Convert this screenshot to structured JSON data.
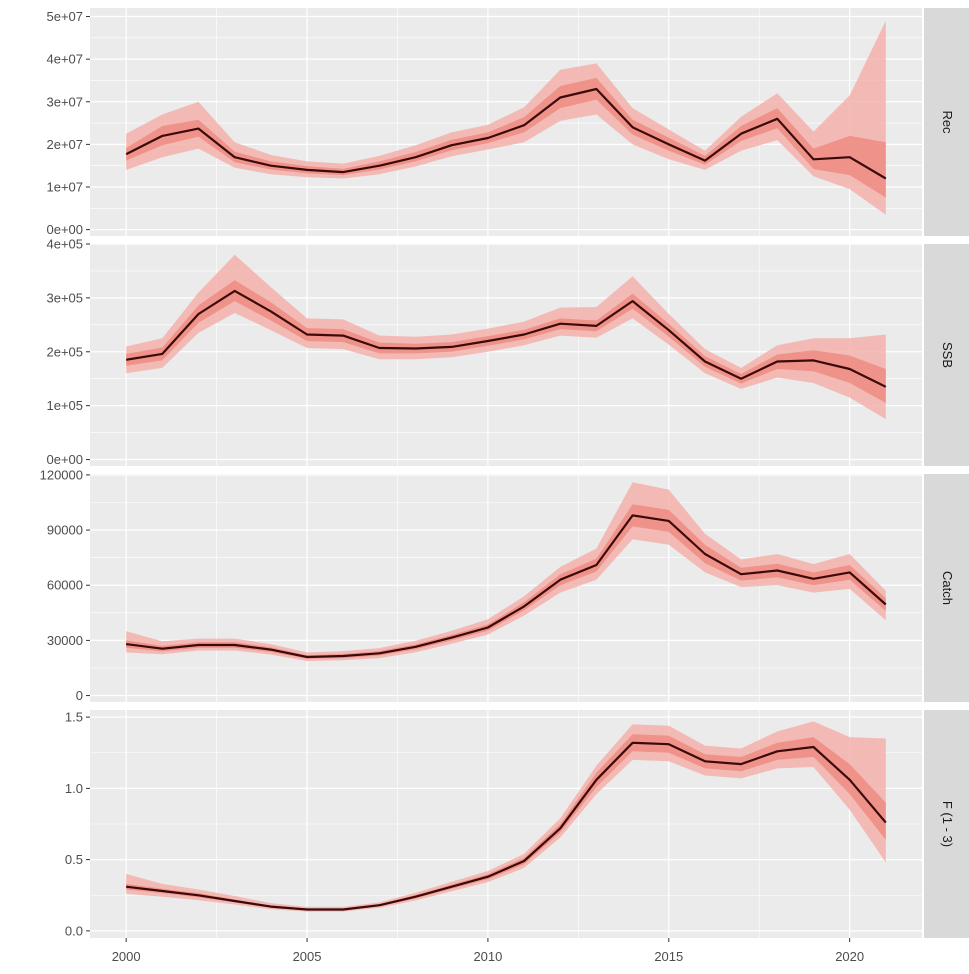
{
  "chart_data": {
    "type": "line",
    "x_axis": {
      "range": [
        1999.0,
        2022.0
      ],
      "ticks": [
        2000,
        2005,
        2010,
        2015,
        2020
      ],
      "tick_labels": [
        "2000",
        "2005",
        "2010",
        "2015",
        "2020"
      ]
    },
    "x": [
      2000,
      2001,
      2002,
      2003,
      2004,
      2005,
      2006,
      2007,
      2008,
      2009,
      2010,
      2011,
      2012,
      2013,
      2014,
      2015,
      2016,
      2017,
      2018,
      2019,
      2020,
      2021
    ],
    "colors": {
      "panel_bg": "#ebebeb",
      "grid": "#ffffff",
      "strip_bg": "#d9d9d9",
      "band_outer": "#f4b2ab",
      "band_inner": "#ee8a80",
      "line": "#3b0a0a"
    },
    "grid": true,
    "panels": [
      {
        "strip": "Rec",
        "ylim": [
          -1500000,
          52000000
        ],
        "y_ticks": [
          0,
          10000000,
          20000000,
          30000000,
          40000000,
          50000000
        ],
        "y_tick_labels": [
          "0e+00",
          "1e+07",
          "2e+07",
          "3e+07",
          "4e+07",
          "5e+07"
        ],
        "median": [
          17700000,
          22000000,
          23700000,
          17000000,
          15000000,
          14000000,
          13500000,
          15000000,
          17000000,
          19800000,
          21500000,
          24500000,
          31000000,
          33000000,
          24000000,
          20000000,
          16200000,
          22500000,
          26000000,
          16500000,
          17000000,
          12000000
        ],
        "inner_lo": [
          16200000,
          19800000,
          21800000,
          15800000,
          14100000,
          13200000,
          12800000,
          14100000,
          16000000,
          18600000,
          20300000,
          22800000,
          28500000,
          30500000,
          22300000,
          18500000,
          15200000,
          20800000,
          23800000,
          14200000,
          12800000,
          7500000
        ],
        "inner_hi": [
          19200000,
          24300000,
          25800000,
          18300000,
          16000000,
          14900000,
          14300000,
          16000000,
          18200000,
          21100000,
          22800000,
          26400000,
          33700000,
          35600000,
          25800000,
          21600000,
          17300000,
          24300000,
          28500000,
          19000000,
          22000000,
          20500000
        ],
        "outer_lo": [
          14000000,
          17000000,
          19000000,
          14500000,
          13000000,
          12300000,
          12000000,
          13000000,
          14800000,
          17200000,
          18800000,
          20500000,
          25500000,
          27000000,
          20000000,
          16500000,
          14000000,
          18500000,
          21000000,
          12500000,
          9500000,
          3500000
        ],
        "outer_hi": [
          22500000,
          27000000,
          30000000,
          20500000,
          17500000,
          16000000,
          15500000,
          17300000,
          19800000,
          22800000,
          24600000,
          28700000,
          37500000,
          39000000,
          28500000,
          23500000,
          18500000,
          26500000,
          32000000,
          23000000,
          31500000,
          49000000
        ]
      },
      {
        "strip": "SSB",
        "ylim": [
          -12000,
          400000
        ],
        "y_ticks": [
          0,
          100000,
          200000,
          300000,
          400000
        ],
        "y_tick_labels": [
          "0e+00",
          "1e+05",
          "2e+05",
          "3e+05",
          "4e+05"
        ],
        "median": [
          185000,
          196000,
          270000,
          313000,
          275000,
          232000,
          230000,
          207000,
          206000,
          209000,
          220000,
          232000,
          252000,
          248000,
          294000,
          240000,
          182000,
          150000,
          182000,
          184000,
          168000,
          135000
        ],
        "inner_lo": [
          174000,
          184000,
          254000,
          294000,
          258000,
          220000,
          218000,
          197000,
          197000,
          200000,
          211000,
          223000,
          242000,
          238000,
          280000,
          228000,
          172000,
          141000,
          168000,
          164000,
          142000,
          105000
        ],
        "inner_hi": [
          196000,
          208000,
          286000,
          333000,
          292000,
          244000,
          242000,
          217000,
          215000,
          218000,
          229000,
          241000,
          262000,
          258000,
          308000,
          252000,
          192000,
          159000,
          195000,
          203000,
          193000,
          168000
        ],
        "outer_lo": [
          160000,
          170000,
          235000,
          272000,
          240000,
          207000,
          205000,
          186000,
          186000,
          190000,
          200000,
          212000,
          230000,
          226000,
          262000,
          213000,
          160000,
          131000,
          152000,
          142000,
          115000,
          75000
        ],
        "outer_hi": [
          210000,
          225000,
          310000,
          380000,
          320000,
          262000,
          260000,
          230000,
          228000,
          232000,
          243000,
          256000,
          282000,
          283000,
          340000,
          270000,
          205000,
          170000,
          212000,
          225000,
          225000,
          232000
        ]
      },
      {
        "strip": "Catch",
        "ylim": [
          -3500,
          120500
        ],
        "y_ticks": [
          0,
          30000,
          60000,
          90000,
          120000
        ],
        "y_tick_labels": [
          "0",
          "30000",
          "60000",
          "90000",
          "120000"
        ],
        "median": [
          28000,
          25500,
          27500,
          27500,
          25000,
          21000,
          21500,
          23000,
          26500,
          31500,
          37000,
          48500,
          63000,
          71000,
          98000,
          95000,
          77000,
          66000,
          68000,
          63500,
          67000,
          49500
        ],
        "inner_lo": [
          26000,
          24000,
          26000,
          26000,
          23700,
          20000,
          20400,
          21800,
          25200,
          30000,
          35300,
          46300,
          60000,
          67500,
          92000,
          89000,
          72000,
          62500,
          64300,
          60000,
          63000,
          46000
        ],
        "inner_hi": [
          30000,
          27000,
          29000,
          29000,
          26300,
          22000,
          22600,
          24200,
          27800,
          33000,
          38700,
          50700,
          66000,
          74500,
          104000,
          101000,
          82000,
          69500,
          71700,
          67000,
          71000,
          53000
        ],
        "outer_lo": [
          23500,
          22500,
          24500,
          24500,
          22300,
          18800,
          19200,
          20400,
          23600,
          28200,
          33200,
          43500,
          56000,
          63000,
          85000,
          82000,
          67000,
          59000,
          60000,
          56000,
          58000,
          41000
        ],
        "outer_hi": [
          35000,
          29500,
          31000,
          31000,
          28000,
          23500,
          24200,
          25800,
          29800,
          35300,
          41500,
          54000,
          70000,
          80000,
          116000,
          112000,
          88000,
          74000,
          77000,
          71500,
          77000,
          57000
        ]
      },
      {
        "strip": "F (1 - 3)",
        "ylim": [
          -0.05,
          1.55
        ],
        "y_ticks": [
          0.0,
          0.5,
          1.0,
          1.5
        ],
        "y_tick_labels": [
          "0.0",
          "0.5",
          "1.0",
          "1.5"
        ],
        "median": [
          0.31,
          0.28,
          0.25,
          0.21,
          0.17,
          0.15,
          0.15,
          0.18,
          0.24,
          0.31,
          0.38,
          0.49,
          0.72,
          1.06,
          1.32,
          1.31,
          1.19,
          1.17,
          1.26,
          1.29,
          1.06,
          0.76
        ],
        "inner_lo": [
          0.29,
          0.265,
          0.235,
          0.2,
          0.162,
          0.143,
          0.143,
          0.172,
          0.228,
          0.295,
          0.362,
          0.467,
          0.69,
          1.01,
          1.26,
          1.25,
          1.14,
          1.12,
          1.2,
          1.22,
          0.96,
          0.64
        ],
        "inner_hi": [
          0.33,
          0.295,
          0.265,
          0.22,
          0.178,
          0.157,
          0.157,
          0.188,
          0.252,
          0.325,
          0.398,
          0.513,
          0.75,
          1.11,
          1.38,
          1.37,
          1.24,
          1.22,
          1.32,
          1.36,
          1.17,
          0.9
        ],
        "outer_lo": [
          0.26,
          0.24,
          0.215,
          0.185,
          0.152,
          0.135,
          0.135,
          0.162,
          0.214,
          0.278,
          0.342,
          0.442,
          0.655,
          0.96,
          1.2,
          1.19,
          1.09,
          1.07,
          1.14,
          1.15,
          0.85,
          0.48
        ],
        "outer_hi": [
          0.4,
          0.33,
          0.29,
          0.245,
          0.195,
          0.168,
          0.168,
          0.2,
          0.268,
          0.345,
          0.42,
          0.54,
          0.79,
          1.16,
          1.45,
          1.44,
          1.3,
          1.28,
          1.4,
          1.47,
          1.36,
          1.35
        ]
      }
    ]
  }
}
